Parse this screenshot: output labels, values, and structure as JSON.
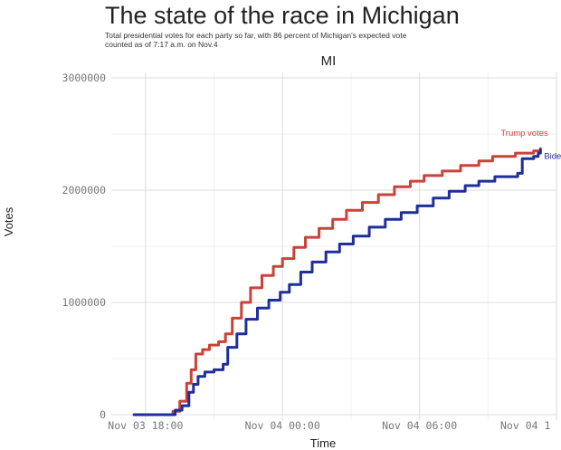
{
  "chart_data": {
    "type": "line",
    "title": "The state of the race in Michigan",
    "subtitle": [
      "Total presidential votes for each party so far, with 86 percent of Michigan's expected vote",
      "counted as of 7:17 a.m. on Nov.4"
    ],
    "facet_label": "MI",
    "xlabel": "Time",
    "ylabel": "Votes",
    "x_ticks": [
      "Nov 03 18:00",
      "Nov 04 00:00",
      "Nov 04 06:00",
      "Nov 04 1"
    ],
    "y_ticks": [
      "0",
      "1000000",
      "2000000",
      "3000000"
    ],
    "y_tick_values": [
      0,
      1000000,
      2000000,
      3000000
    ],
    "ylim": [
      0,
      3000000
    ],
    "x_unit": "hours since Nov 03 18:00",
    "xlim": [
      -1.5,
      18
    ],
    "grid": true,
    "colors": {
      "Trump votes": "#c9433a",
      "Biden votes": "#1f2f9a"
    },
    "series": [
      {
        "name": "Trump votes",
        "points": [
          [
            -0.5,
            0
          ],
          [
            1.0,
            0
          ],
          [
            1.2,
            30000
          ],
          [
            1.5,
            120000
          ],
          [
            1.8,
            280000
          ],
          [
            2.0,
            400000
          ],
          [
            2.2,
            540000
          ],
          [
            2.5,
            580000
          ],
          [
            2.8,
            620000
          ],
          [
            3.2,
            650000
          ],
          [
            3.5,
            720000
          ],
          [
            3.8,
            860000
          ],
          [
            4.2,
            1000000
          ],
          [
            4.6,
            1130000
          ],
          [
            5.1,
            1240000
          ],
          [
            5.6,
            1320000
          ],
          [
            6.0,
            1390000
          ],
          [
            6.5,
            1490000
          ],
          [
            7.0,
            1580000
          ],
          [
            7.6,
            1660000
          ],
          [
            8.2,
            1740000
          ],
          [
            8.8,
            1820000
          ],
          [
            9.5,
            1890000
          ],
          [
            10.2,
            1960000
          ],
          [
            10.9,
            2030000
          ],
          [
            11.6,
            2080000
          ],
          [
            12.2,
            2130000
          ],
          [
            13.0,
            2170000
          ],
          [
            13.8,
            2220000
          ],
          [
            14.6,
            2260000
          ],
          [
            15.2,
            2300000
          ],
          [
            16.2,
            2330000
          ],
          [
            17.0,
            2350000
          ],
          [
            17.3,
            2370000
          ]
        ]
      },
      {
        "name": "Biden votes",
        "points": [
          [
            -0.5,
            0
          ],
          [
            1.0,
            0
          ],
          [
            1.3,
            40000
          ],
          [
            1.6,
            80000
          ],
          [
            1.9,
            200000
          ],
          [
            2.1,
            270000
          ],
          [
            2.3,
            340000
          ],
          [
            2.6,
            380000
          ],
          [
            3.0,
            400000
          ],
          [
            3.4,
            450000
          ],
          [
            3.6,
            600000
          ],
          [
            4.0,
            720000
          ],
          [
            4.4,
            850000
          ],
          [
            4.9,
            950000
          ],
          [
            5.4,
            1020000
          ],
          [
            5.9,
            1090000
          ],
          [
            6.3,
            1160000
          ],
          [
            6.8,
            1270000
          ],
          [
            7.3,
            1360000
          ],
          [
            7.9,
            1450000
          ],
          [
            8.5,
            1520000
          ],
          [
            9.1,
            1590000
          ],
          [
            9.8,
            1670000
          ],
          [
            10.5,
            1740000
          ],
          [
            11.2,
            1800000
          ],
          [
            11.9,
            1860000
          ],
          [
            12.6,
            1930000
          ],
          [
            13.3,
            1990000
          ],
          [
            14.0,
            2040000
          ],
          [
            14.6,
            2080000
          ],
          [
            15.3,
            2120000
          ],
          [
            16.3,
            2150000
          ],
          [
            16.5,
            2280000
          ],
          [
            17.0,
            2300000
          ],
          [
            17.2,
            2330000
          ],
          [
            17.3,
            2360000
          ]
        ]
      }
    ]
  }
}
